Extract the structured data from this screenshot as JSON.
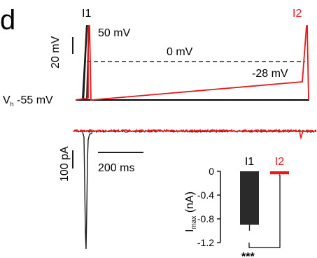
{
  "panel_letter": "d",
  "colors": {
    "i1": "#1a1a1a",
    "i2": "#e8191b",
    "bar_fill": "#2a2a2a"
  },
  "protocol": {
    "label_i1": "I1",
    "label_i2": "I2",
    "scale_bar_label": "20 mV",
    "label_50mv": "50 mV",
    "label_0mv": "0 mV",
    "label_ramp_end": "-28 mV",
    "label_vh_prefix": "V",
    "label_vh_sub": "h",
    "label_vh_value": " -55 mV"
  },
  "current_traces": {
    "scale_bar_current": "100 pA",
    "scale_bar_time": "200 ms"
  },
  "chart_data": {
    "type": "bar",
    "categories": [
      "I1",
      "I2"
    ],
    "values": [
      -0.9,
      -0.05
    ],
    "error_bars": [
      0.1,
      0.02
    ],
    "ylim": [
      -1.2,
      0
    ],
    "yticks": [
      0,
      -0.4,
      -0.8,
      -1.2
    ],
    "ytick_labels": [
      "0",
      "-0.4",
      "-0.8",
      "-1.2"
    ],
    "ylabel_main": "I",
    "ylabel_sub": "max",
    "ylabel_unit": " (nA)",
    "significance": "***",
    "colors": [
      "#2a2a2a",
      "#e8191b"
    ]
  }
}
